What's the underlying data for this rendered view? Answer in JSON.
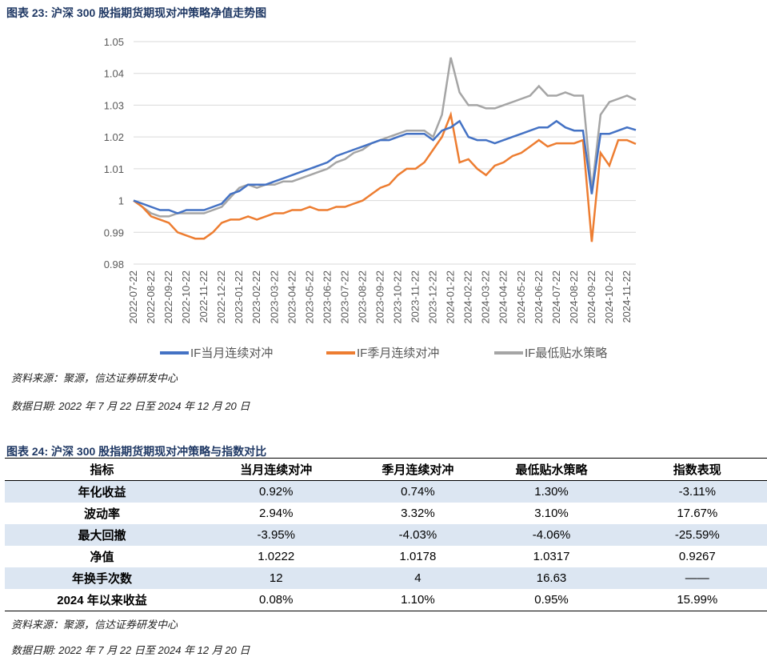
{
  "figure1": {
    "title": "图表 23:  沪深 300 股指期货期现对冲策略净值走势图",
    "source": "资料来源：聚源，信达证券研发中心",
    "date_note": "数据日期:  2022 年 7 月 22 日至 2024 年 12 月 20 日"
  },
  "chart_data": {
    "type": "line",
    "categories": [
      "2022-07-22",
      null,
      "2022-08-22",
      null,
      "2022-09-22",
      null,
      "2022-10-22",
      null,
      "2022-11-22",
      null,
      "2022-12-22",
      null,
      "2023-01-22",
      null,
      "2023-02-22",
      null,
      "2023-03-22",
      null,
      "2023-04-22",
      null,
      "2023-05-22",
      null,
      "2023-06-22",
      null,
      "2023-07-22",
      null,
      "2023-08-22",
      null,
      "2023-09-22",
      null,
      "2023-10-22",
      null,
      "2023-11-22",
      null,
      "2023-12-22",
      null,
      "2024-01-22",
      null,
      "2024-02-22",
      null,
      "2024-03-22",
      null,
      "2024-04-22",
      null,
      "2024-05-22",
      null,
      "2024-06-22",
      null,
      "2024-07-22",
      null,
      "2024-08-22",
      null,
      "2024-09-22",
      null,
      "2024-10-22",
      null,
      "2024-11-22",
      null
    ],
    "series": [
      {
        "name": "IF当月连续对冲",
        "color": "#4472c4",
        "values": [
          1.0,
          0.999,
          0.998,
          0.997,
          0.997,
          0.996,
          0.997,
          0.997,
          0.997,
          0.998,
          0.999,
          1.002,
          1.003,
          1.005,
          1.005,
          1.005,
          1.006,
          1.007,
          1.008,
          1.009,
          1.01,
          1.011,
          1.012,
          1.014,
          1.015,
          1.016,
          1.017,
          1.018,
          1.019,
          1.019,
          1.02,
          1.021,
          1.021,
          1.021,
          1.019,
          1.022,
          1.023,
          1.025,
          1.02,
          1.019,
          1.019,
          1.018,
          1.019,
          1.02,
          1.021,
          1.022,
          1.023,
          1.023,
          1.025,
          1.023,
          1.022,
          1.022,
          1.002,
          1.021,
          1.021,
          1.022,
          1.023,
          1.0222
        ]
      },
      {
        "name": "IF季月连续对冲",
        "color": "#ed7d31",
        "values": [
          1.0,
          0.998,
          0.995,
          0.994,
          0.993,
          0.99,
          0.989,
          0.988,
          0.988,
          0.99,
          0.993,
          0.994,
          0.994,
          0.995,
          0.994,
          0.995,
          0.996,
          0.996,
          0.997,
          0.997,
          0.998,
          0.997,
          0.997,
          0.998,
          0.998,
          0.999,
          1.0,
          1.002,
          1.004,
          1.005,
          1.008,
          1.01,
          1.01,
          1.012,
          1.016,
          1.02,
          1.027,
          1.012,
          1.013,
          1.01,
          1.008,
          1.011,
          1.012,
          1.014,
          1.015,
          1.017,
          1.019,
          1.017,
          1.018,
          1.018,
          1.018,
          1.019,
          0.987,
          1.015,
          1.011,
          1.019,
          1.019,
          1.0178
        ]
      },
      {
        "name": "IF最低贴水策略",
        "color": "#a5a5a5",
        "values": [
          1.0,
          0.998,
          0.996,
          0.995,
          0.995,
          0.996,
          0.996,
          0.996,
          0.996,
          0.997,
          0.998,
          1.001,
          1.004,
          1.005,
          1.004,
          1.005,
          1.005,
          1.006,
          1.006,
          1.007,
          1.008,
          1.009,
          1.01,
          1.012,
          1.013,
          1.015,
          1.016,
          1.018,
          1.019,
          1.02,
          1.021,
          1.022,
          1.022,
          1.022,
          1.02,
          1.027,
          1.045,
          1.034,
          1.03,
          1.03,
          1.029,
          1.029,
          1.03,
          1.031,
          1.032,
          1.033,
          1.036,
          1.033,
          1.033,
          1.034,
          1.033,
          1.033,
          1.003,
          1.027,
          1.031,
          1.032,
          1.033,
          1.0317
        ]
      }
    ],
    "ylim": [
      0.98,
      1.05
    ],
    "yticks": [
      0.98,
      0.99,
      1,
      1.01,
      1.02,
      1.03,
      1.04,
      1.05
    ],
    "grid": true,
    "legend": "bottom"
  },
  "table": {
    "title": "图表 24:  沪深 300 股指期货期现对冲策略与指数对比",
    "header": [
      "指标",
      "当月连续对冲",
      "季月连续对冲",
      "最低贴水策略",
      "指数表现"
    ],
    "rows": [
      [
        "年化收益",
        "0.92%",
        "0.74%",
        "1.30%",
        "-3.11%"
      ],
      [
        "波动率",
        "2.94%",
        "3.32%",
        "3.10%",
        "17.67%"
      ],
      [
        "最大回撤",
        "-3.95%",
        "-4.03%",
        "-4.06%",
        "-25.59%"
      ],
      [
        "净值",
        "1.0222",
        "1.0178",
        "1.0317",
        "0.9267"
      ],
      [
        "年换手次数",
        "12",
        "4",
        "16.63",
        "——"
      ],
      [
        "2024 年以来收益",
        "0.08%",
        "1.10%",
        "0.95%",
        "15.99%"
      ]
    ],
    "source": "资料来源：聚源，信达证券研发中心",
    "date_note": "数据日期:  2022 年 7 月 22 日至 2024 年 12 月 20 日"
  }
}
